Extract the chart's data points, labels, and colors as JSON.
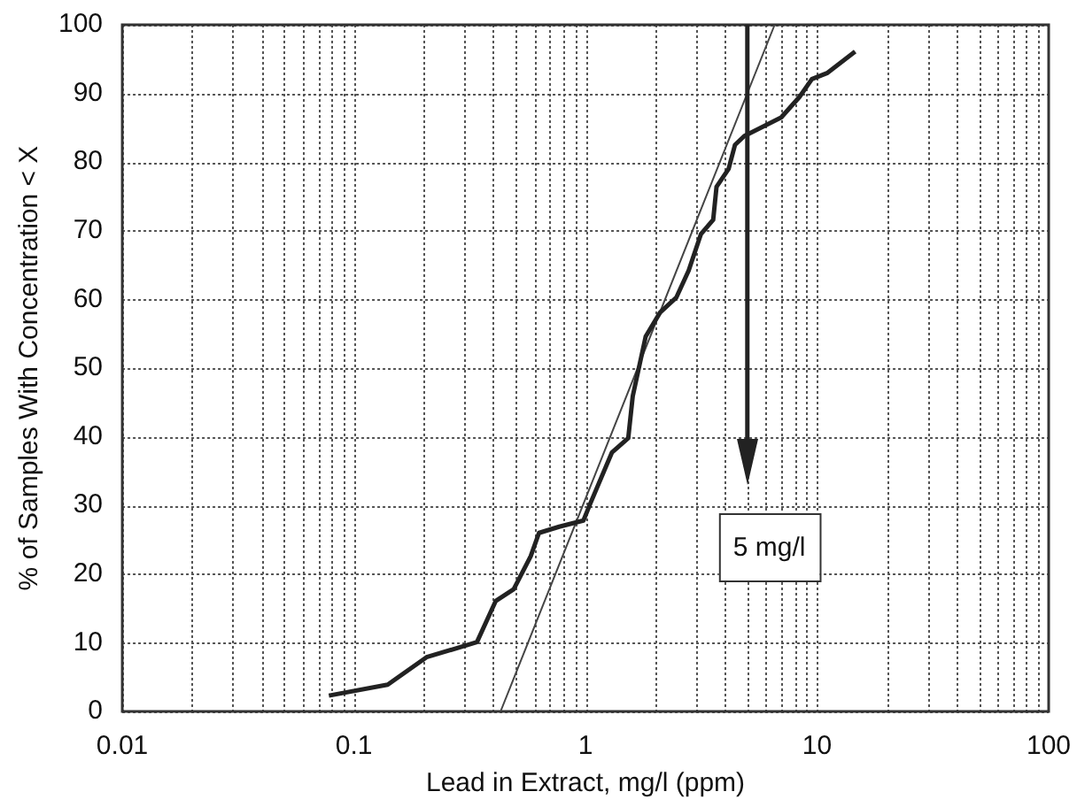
{
  "chart_data": {
    "type": "line",
    "xlabel": "Lead in Extract, mg/l (ppm)",
    "ylabel": "% of Samples With Concentration < X",
    "log": "x",
    "xlim": [
      0.01,
      100
    ],
    "xticks": [
      0.01,
      0.1,
      1,
      10,
      100
    ],
    "ylim": [
      0,
      100
    ],
    "yticks": [
      0,
      10,
      20,
      30,
      40,
      50,
      60,
      70,
      80,
      90,
      100
    ],
    "grid": true,
    "legend": false,
    "marker": "none",
    "line_style": "solid",
    "series": [
      {
        "color": "#222222",
        "x": [
          0.078,
          0.14,
          0.206,
          0.34,
          0.41,
          0.49,
          0.58,
          0.63,
          0.77,
          0.98,
          1.05,
          1.3,
          1.53,
          1.6,
          1.82,
          2.1,
          2.47,
          2.79,
          3.15,
          3.56,
          3.68,
          4.15,
          4.42,
          4.85,
          7.0,
          8.4,
          9.5,
          11.1,
          14.6
        ],
        "values": [
          2.3,
          3.9,
          7.9,
          10.1,
          16.1,
          17.8,
          22.6,
          26,
          26.9,
          27.8,
          30.3,
          37.7,
          39.8,
          45.9,
          54.6,
          58.1,
          60.3,
          64.2,
          69.5,
          71.6,
          76.4,
          79,
          82.5,
          83.8,
          86.5,
          89.5,
          92.1,
          93,
          96.1
        ]
      },
      {
        "color": "#444444",
        "x": [
          0.43,
          6.56
        ],
        "values": [
          0,
          100
        ]
      }
    ],
    "ref_lines": [
      {
        "axis": "x",
        "value": 5,
        "label": "5 mg/l",
        "color": "#222222"
      }
    ]
  }
}
